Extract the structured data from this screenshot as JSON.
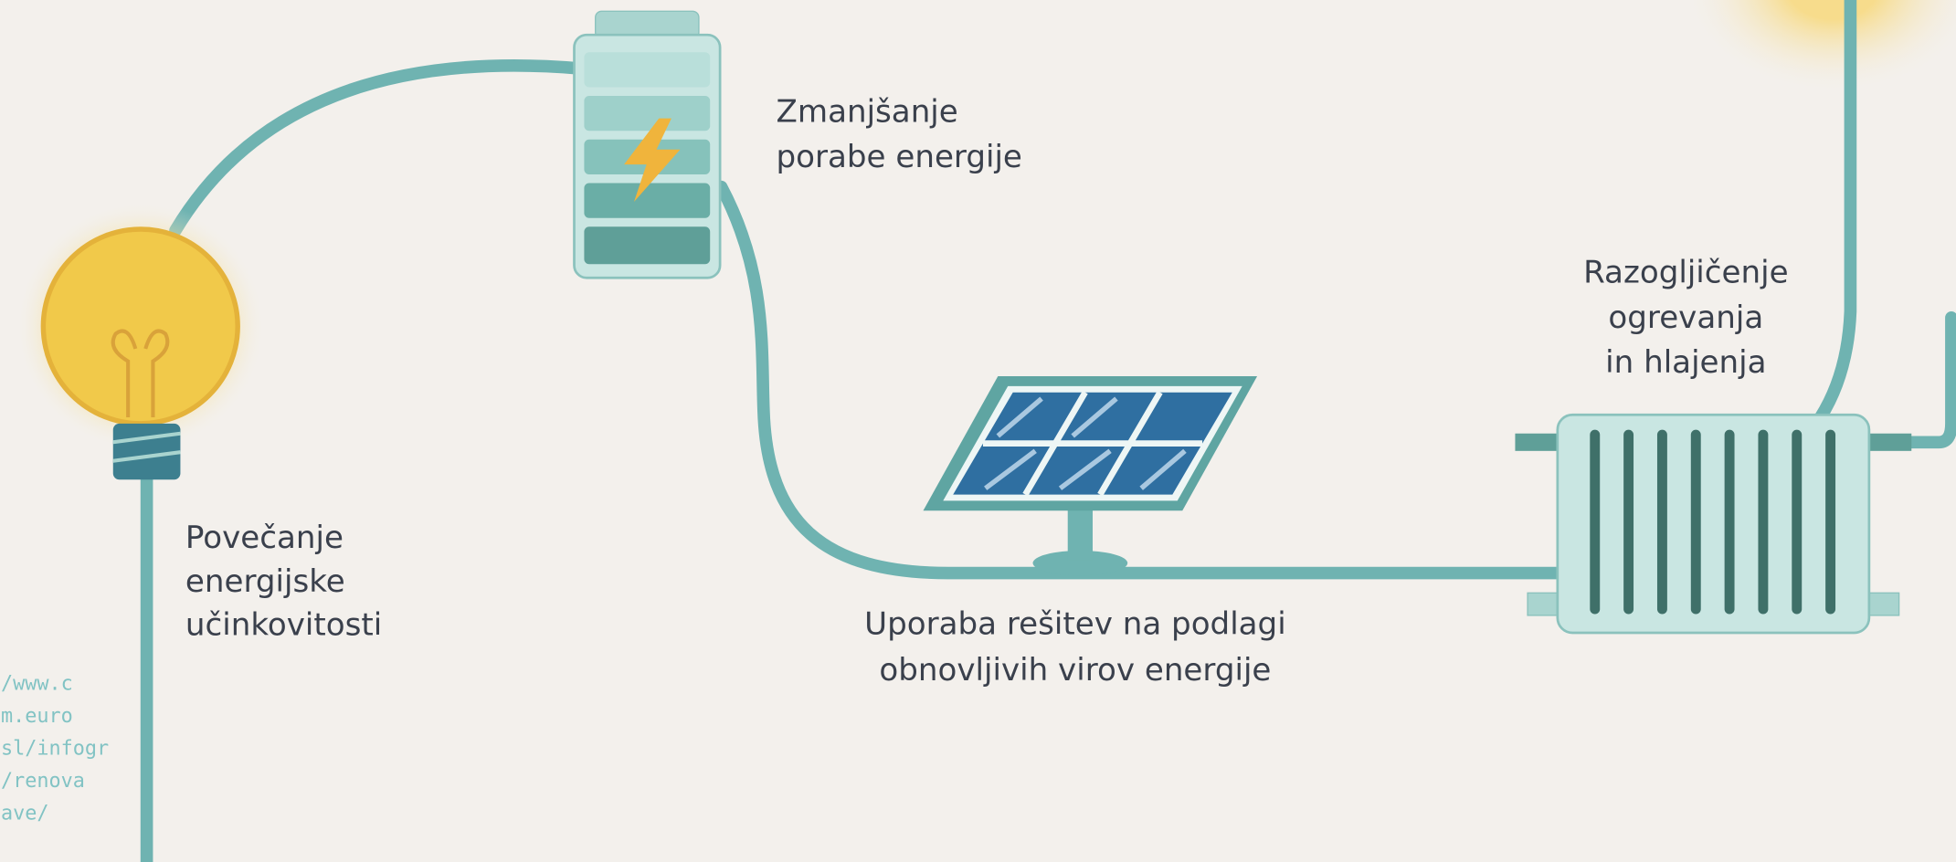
{
  "labels": [
    {
      "lines": [
        "Zmanjšanje",
        "porabe energije"
      ]
    },
    {
      "lines": [
        "Razogljičenje",
        "ogrevanja",
        "in hlajenja"
      ]
    },
    {
      "lines": [
        "Povečanje",
        "energijske",
        "učinkovitosti"
      ]
    },
    {
      "lines": [
        "Uporaba rešitev na podlagi",
        "obnovljivih virov energije"
      ]
    }
  ],
  "source": {
    "lines": [
      "/www.c",
      "m.euro",
      "sl/infogr",
      "/renova",
      "ave/"
    ]
  }
}
